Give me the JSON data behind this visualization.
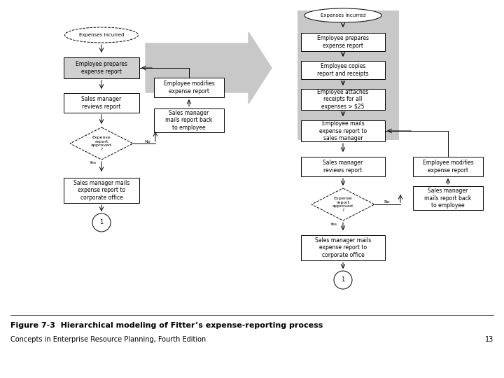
{
  "title": "Figure 7-3  Hierarchical modeling of Fitter’s expense-reporting process",
  "subtitle": "Concepts in Enterprise Resource Planning, Fourth Edition",
  "page_num": "13",
  "background_color": "#ffffff",
  "gray_color": "#c8c8c8",
  "gray_highlight": "#d0d0d0"
}
